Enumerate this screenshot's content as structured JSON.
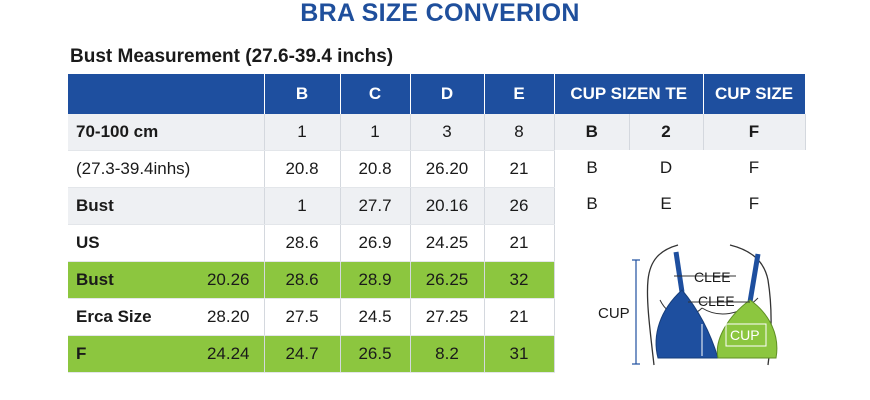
{
  "title": "BRA SIZE CONVERION",
  "subtitle": "Bust Measurement (27.6-39.4 inchs)",
  "main_table": {
    "headers": [
      "",
      "B",
      "C",
      "D",
      "E"
    ],
    "rows": [
      {
        "label": "70-100 cm",
        "extra": "",
        "values": [
          "1",
          "1",
          "3",
          "8"
        ],
        "style": "gray"
      },
      {
        "label": "(27.3-39.4inhs)",
        "extra": "",
        "values": [
          "20.8",
          "20.8",
          "26.20",
          "21"
        ],
        "style": "white"
      },
      {
        "label": "Bust",
        "extra": "",
        "values": [
          "1",
          "27.7",
          "20.16",
          "26"
        ],
        "style": "gray"
      },
      {
        "label": "US",
        "extra": "",
        "values": [
          "28.6",
          "26.9",
          "24.25",
          "21"
        ],
        "style": "white"
      },
      {
        "label": "Bust",
        "extra": "20.26",
        "values": [
          "28.6",
          "28.9",
          "26.25",
          "32"
        ],
        "style": "green"
      },
      {
        "label": "Erca Size",
        "extra": "28.20",
        "values": [
          "27.5",
          "24.5",
          "27.25",
          "21"
        ],
        "style": "white"
      },
      {
        "label": "F",
        "extra": "24.24",
        "values": [
          "24.7",
          "26.5",
          "8.2",
          "31"
        ],
        "style": "green"
      }
    ]
  },
  "cup_table": {
    "headers": [
      "CUP SIZEN TE",
      "CUP SIZE"
    ],
    "rows": [
      [
        "B",
        "2",
        "F"
      ],
      [
        "B",
        "D",
        "F"
      ],
      [
        "B",
        "E",
        "F"
      ]
    ]
  },
  "diagram": {
    "side_label": "CUP",
    "label_top": "CLEE",
    "label_mid": "CLEE",
    "label_cup": "CUP",
    "colors": {
      "left_cup": "#1e4f9f",
      "right_cup": "#8cc63f",
      "outline": "#333333"
    }
  },
  "colors": {
    "header_blue": "#1e4f9f",
    "accent_green": "#8cc63f",
    "title_blue": "#1f4f9c"
  }
}
